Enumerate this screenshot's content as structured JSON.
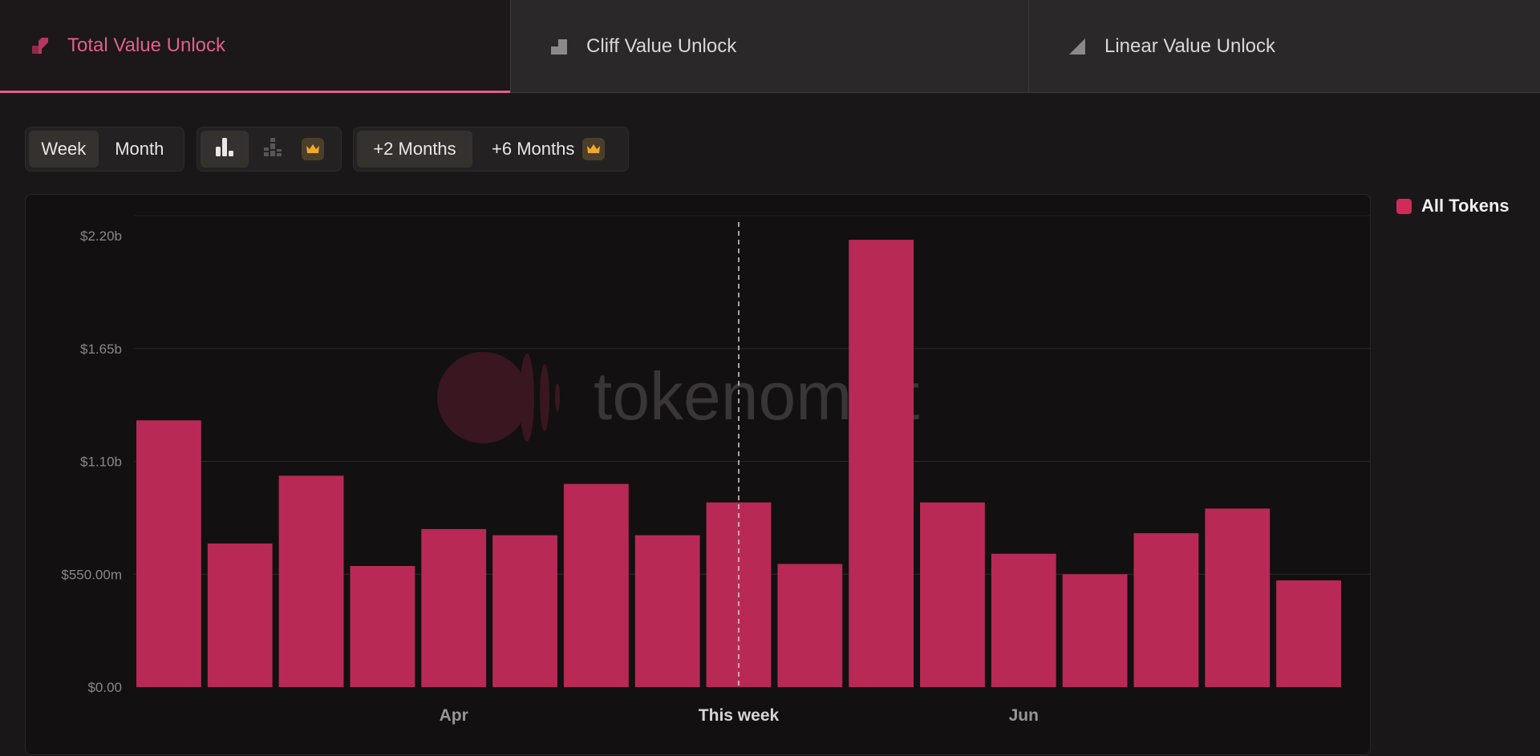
{
  "tabs": [
    {
      "label": "Total Value Unlock",
      "icon": "total-unlock-icon",
      "active": true
    },
    {
      "label": "Cliff Value Unlock",
      "icon": "cliff-unlock-icon",
      "active": false
    },
    {
      "label": "Linear Value Unlock",
      "icon": "linear-unlock-icon",
      "active": false
    }
  ],
  "toolbar": {
    "period": {
      "week": "Week",
      "month": "Month",
      "selected": "Week"
    },
    "chart_type": {
      "icons": [
        "bar-chart-icon",
        "stacked-chart-icon",
        "crown-icon"
      ],
      "selected": "bar-chart-icon"
    },
    "range": {
      "two_months": "+2 Months",
      "six_months": "+6 Months",
      "selected": "+2 Months"
    }
  },
  "colors": {
    "accent": "#e2608a",
    "bar": "#b82a55",
    "legend": "#d22a5c",
    "crown": "#f0a92c"
  },
  "watermark": "tokenomist",
  "legend": {
    "label": "All Tokens"
  },
  "chart_data": {
    "type": "bar",
    "series": [
      {
        "name": "All Tokens",
        "values": [
          1300000000,
          700000000,
          1030000000,
          590000000,
          770000000,
          740000000,
          990000000,
          740000000,
          900000000,
          600000000,
          2180000000,
          900000000,
          650000000,
          550000000,
          750000000,
          870000000,
          520000000
        ]
      }
    ],
    "ylim": [
      0,
      2200000000
    ],
    "yticks": [
      {
        "value": 0,
        "label": "$0.00"
      },
      {
        "value": 550000000,
        "label": "$550.00m"
      },
      {
        "value": 1100000000,
        "label": "$1.10b"
      },
      {
        "value": 1650000000,
        "label": "$1.65b"
      },
      {
        "value": 2200000000,
        "label": "$2.20b"
      }
    ],
    "xticks": [
      {
        "bar": 4.5,
        "label": "Apr",
        "highlight": false
      },
      {
        "bar": 8.5,
        "label": "This week",
        "highlight": true
      },
      {
        "bar": 12.5,
        "label": "Jun",
        "highlight": false
      }
    ],
    "current_week_marker": {
      "bar": 8,
      "style": "dashed"
    },
    "grid": true
  }
}
